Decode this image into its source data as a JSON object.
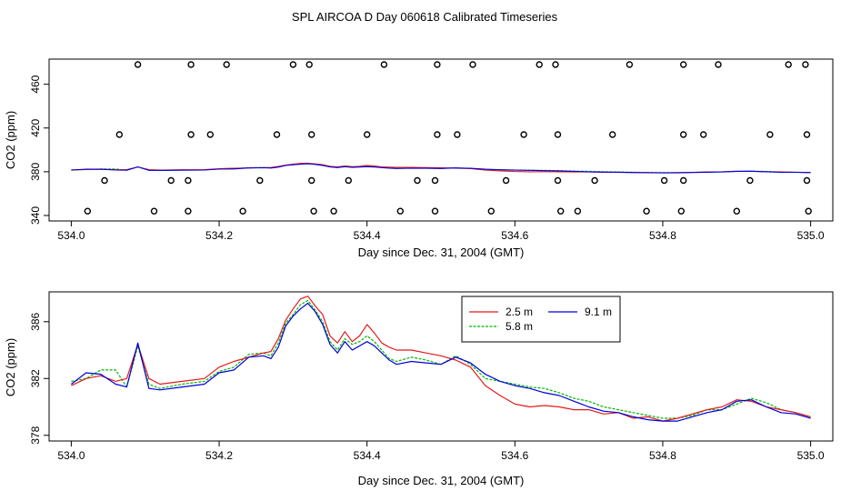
{
  "title": "SPL AIRCOA D  Day 060618  Calibrated Timeseries",
  "colors": {
    "s25": "#e31a1c",
    "s58": "#00b800",
    "s91": "#0000dd",
    "flag": "#000000"
  },
  "chart_data": [
    {
      "type": "scatter+line",
      "xlabel": "Day since Dec. 31, 2004 (GMT)",
      "ylabel": "CO2 (ppm)",
      "xlim": [
        533.97,
        535.03
      ],
      "ylim": [
        335,
        483
      ],
      "xticks": [
        534.0,
        534.2,
        534.4,
        534.6,
        534.8,
        535.0
      ],
      "xtick_labels": [
        "534.0",
        "534.2",
        "534.4",
        "534.6",
        "534.8",
        "535.0"
      ],
      "yticks": [
        340,
        380,
        420,
        460
      ],
      "ytick_labels": [
        "340",
        "380",
        "420",
        "460"
      ],
      "markers": {
        "y": [
          478,
          414,
          372,
          344
        ],
        "x": [
          [
            534.09,
            534.162,
            534.21,
            534.3,
            534.322,
            534.423,
            534.495,
            534.543,
            534.633,
            534.655,
            534.755,
            534.828,
            534.875,
            534.97,
            534.993
          ],
          [
            534.065,
            534.162,
            534.188,
            534.278,
            534.325,
            534.4,
            534.495,
            534.522,
            534.612,
            534.658,
            534.732,
            534.828,
            534.855,
            534.945,
            534.995
          ],
          [
            534.045,
            534.135,
            534.158,
            534.255,
            534.325,
            534.375,
            534.468,
            534.492,
            534.588,
            534.658,
            534.708,
            534.802,
            534.828,
            534.918,
            534.995
          ],
          [
            534.022,
            534.112,
            534.158,
            534.232,
            534.328,
            534.355,
            534.445,
            534.492,
            534.568,
            534.662,
            534.685,
            534.778,
            534.825,
            534.9,
            534.997
          ]
        ]
      }
    },
    {
      "type": "line",
      "xlabel": "Day since Dec. 31, 2004 (GMT)",
      "ylabel": "CO2 (ppm)",
      "xlim": [
        533.97,
        535.03
      ],
      "ylim": [
        377.6,
        388.1
      ],
      "xticks": [
        534.0,
        534.2,
        534.4,
        534.6,
        534.8,
        535.0
      ],
      "xtick_labels": [
        "534.0",
        "534.2",
        "534.4",
        "534.6",
        "534.8",
        "535.0"
      ],
      "yticks": [
        378,
        382,
        386
      ],
      "ytick_labels": [
        "378",
        "382",
        "386"
      ],
      "legend": {
        "placement": "top-center"
      },
      "series": [
        {
          "name": "2.5 m",
          "key": "s25",
          "x": [
            534.0,
            534.02,
            534.04,
            534.06,
            534.075,
            534.09,
            534.105,
            534.12,
            534.15,
            534.18,
            534.2,
            534.22,
            534.24,
            534.26,
            534.27,
            534.28,
            534.29,
            534.3,
            534.31,
            534.32,
            534.33,
            534.34,
            534.35,
            534.36,
            534.37,
            534.38,
            534.39,
            534.4,
            534.41,
            534.42,
            534.43,
            534.44,
            534.46,
            534.48,
            534.5,
            534.52,
            534.54,
            534.56,
            534.58,
            534.6,
            534.62,
            534.64,
            534.66,
            534.68,
            534.7,
            534.72,
            534.74,
            534.76,
            534.78,
            534.8,
            534.82,
            534.84,
            534.86,
            534.88,
            534.9,
            534.92,
            534.94,
            534.96,
            534.98,
            535.0
          ],
          "y": [
            381.5,
            382.0,
            382.2,
            381.8,
            382.0,
            384.4,
            382.0,
            381.6,
            381.8,
            382.0,
            382.8,
            383.2,
            383.5,
            383.8,
            383.9,
            384.8,
            386.1,
            386.9,
            387.6,
            387.8,
            387.1,
            386.5,
            385.0,
            384.5,
            385.3,
            384.6,
            385.0,
            385.8,
            385.2,
            384.5,
            384.2,
            384.0,
            384.0,
            383.8,
            383.6,
            383.3,
            382.8,
            381.5,
            380.8,
            380.2,
            380.0,
            380.1,
            380.0,
            379.8,
            379.8,
            379.5,
            379.6,
            379.2,
            379.3,
            379.0,
            379.2,
            379.5,
            379.8,
            380.0,
            380.5,
            380.4,
            380.0,
            379.8,
            379.6,
            379.3
          ]
        },
        {
          "name": "5.8 m",
          "key": "s58",
          "x": [
            534.0,
            534.02,
            534.04,
            534.06,
            534.075,
            534.09,
            534.105,
            534.12,
            534.15,
            534.18,
            534.2,
            534.22,
            534.24,
            534.26,
            534.27,
            534.28,
            534.29,
            534.3,
            534.31,
            534.32,
            534.33,
            534.34,
            534.35,
            534.36,
            534.37,
            534.38,
            534.39,
            534.4,
            534.41,
            534.42,
            534.43,
            534.44,
            534.46,
            534.48,
            534.5,
            534.52,
            534.54,
            534.56,
            534.58,
            534.6,
            534.62,
            534.64,
            534.66,
            534.68,
            534.7,
            534.72,
            534.74,
            534.76,
            534.78,
            534.8,
            534.82,
            534.84,
            534.86,
            534.88,
            534.9,
            534.92,
            534.94,
            534.96,
            534.98,
            535.0
          ],
          "y": [
            381.8,
            382.0,
            382.6,
            382.6,
            381.4,
            384.3,
            381.6,
            381.3,
            381.6,
            381.8,
            382.5,
            382.8,
            383.7,
            383.8,
            383.6,
            384.5,
            385.9,
            386.5,
            387.2,
            387.5,
            386.8,
            386.0,
            384.6,
            384.0,
            384.8,
            384.4,
            384.6,
            385.0,
            384.6,
            384.0,
            383.4,
            383.2,
            383.5,
            383.3,
            383.0,
            383.6,
            383.0,
            382.0,
            381.8,
            381.6,
            381.4,
            381.3,
            381.0,
            380.6,
            380.4,
            380.0,
            379.8,
            379.6,
            379.4,
            379.2,
            379.2,
            379.4,
            379.8,
            379.8,
            380.2,
            380.6,
            380.3,
            379.8,
            379.6,
            379.3
          ]
        },
        {
          "name": "9.1 m",
          "key": "s91",
          "x": [
            534.0,
            534.02,
            534.04,
            534.06,
            534.075,
            534.09,
            534.105,
            534.12,
            534.15,
            534.18,
            534.2,
            534.22,
            534.24,
            534.26,
            534.27,
            534.28,
            534.29,
            534.3,
            534.31,
            534.32,
            534.33,
            534.34,
            534.35,
            534.36,
            534.37,
            534.38,
            534.39,
            534.4,
            534.41,
            534.42,
            534.43,
            534.44,
            534.46,
            534.48,
            534.5,
            534.52,
            534.54,
            534.56,
            534.58,
            534.6,
            534.62,
            534.64,
            534.66,
            534.68,
            534.7,
            534.72,
            534.74,
            534.76,
            534.78,
            534.8,
            534.82,
            534.84,
            534.86,
            534.88,
            534.9,
            534.92,
            534.94,
            534.96,
            534.98,
            535.0
          ],
          "y": [
            381.6,
            382.4,
            382.3,
            381.6,
            381.4,
            384.5,
            381.3,
            381.2,
            381.4,
            381.6,
            382.4,
            382.6,
            383.5,
            383.6,
            383.4,
            384.2,
            385.7,
            386.4,
            386.9,
            387.3,
            386.7,
            385.8,
            384.4,
            383.8,
            384.6,
            384.0,
            384.3,
            384.6,
            384.3,
            383.8,
            383.3,
            383.0,
            383.2,
            383.1,
            383.0,
            383.5,
            383.1,
            382.3,
            381.8,
            381.5,
            381.3,
            381.0,
            380.8,
            380.4,
            380.0,
            379.7,
            379.6,
            379.3,
            379.1,
            379.0,
            379.0,
            379.3,
            379.6,
            379.8,
            380.4,
            380.5,
            380.0,
            379.6,
            379.5,
            379.2
          ]
        }
      ]
    }
  ]
}
